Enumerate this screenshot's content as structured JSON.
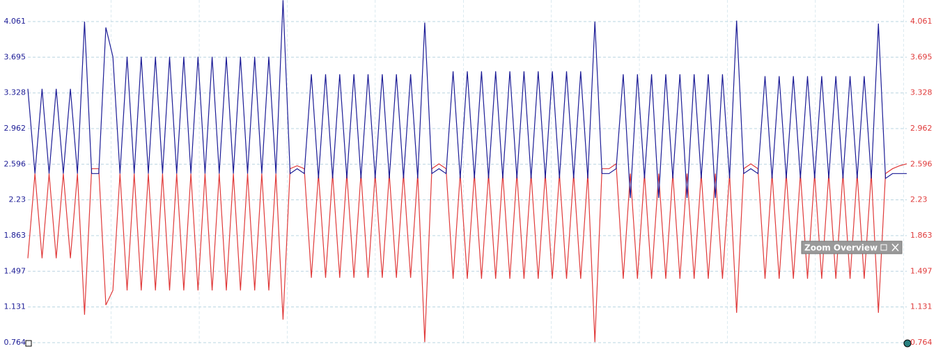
{
  "chart_data": {
    "type": "line",
    "ylim": [
      0.764,
      4.282
    ],
    "yticks": [
      0.764,
      1.131,
      1.497,
      1.863,
      2.23,
      2.596,
      2.962,
      3.328,
      3.695,
      4.061
    ],
    "y2lim": [
      0.764,
      4.282
    ],
    "y2ticks": [
      0.764,
      1.131,
      1.497,
      1.863,
      2.23,
      2.596,
      2.962,
      3.328,
      3.695,
      4.061
    ],
    "grid": true,
    "series": [
      {
        "color": "#1c1c96",
        "values": [
          3.37,
          2.5,
          3.37,
          2.5,
          3.37,
          2.5,
          3.37,
          2.5,
          4.06,
          2.5,
          2.5,
          4.0,
          3.7,
          2.5,
          3.7,
          2.5,
          3.7,
          2.5,
          3.7,
          2.5,
          3.7,
          2.5,
          3.7,
          2.5,
          3.7,
          2.5,
          3.7,
          2.5,
          3.7,
          2.5,
          3.7,
          2.5,
          3.7,
          2.5,
          3.7,
          2.5,
          4.28,
          2.5,
          2.55,
          2.5,
          3.52,
          2.45,
          3.52,
          2.45,
          3.52,
          2.45,
          3.52,
          2.45,
          3.52,
          2.45,
          3.52,
          2.45,
          3.52,
          2.45,
          3.52,
          2.45,
          4.05,
          2.5,
          2.55,
          2.5,
          3.55,
          2.45,
          3.55,
          2.45,
          3.55,
          2.45,
          3.55,
          2.45,
          3.55,
          2.45,
          3.55,
          2.45,
          3.55,
          2.45,
          3.55,
          2.45,
          3.55,
          2.45,
          3.55,
          2.45,
          4.06,
          2.5,
          2.5,
          2.55,
          3.52,
          2.25,
          3.52,
          2.45,
          3.52,
          2.25,
          3.52,
          2.45,
          3.52,
          2.25,
          3.52,
          2.45,
          3.52,
          2.25,
          3.52,
          2.45,
          4.07,
          2.5,
          2.55,
          2.5,
          3.5,
          2.45,
          3.5,
          2.45,
          3.5,
          2.45,
          3.5,
          2.45,
          3.5,
          2.45,
          3.5,
          2.45,
          3.5,
          2.45,
          3.5,
          2.45,
          4.04,
          2.45,
          2.5,
          2.5,
          2.5
        ]
      },
      {
        "color": "#e03a3a",
        "axis": "y2",
        "values": [
          1.63,
          2.5,
          1.63,
          2.5,
          1.63,
          2.5,
          1.63,
          2.5,
          1.05,
          2.55,
          2.55,
          1.15,
          1.3,
          2.5,
          1.3,
          2.5,
          1.3,
          2.5,
          1.3,
          2.5,
          1.3,
          2.5,
          1.3,
          2.5,
          1.3,
          2.5,
          1.3,
          2.5,
          1.3,
          2.5,
          1.3,
          2.5,
          1.3,
          2.5,
          1.3,
          2.5,
          1.0,
          2.55,
          2.58,
          2.55,
          1.43,
          2.5,
          1.43,
          2.5,
          1.43,
          2.5,
          1.43,
          2.5,
          1.43,
          2.5,
          1.43,
          2.5,
          1.43,
          2.5,
          1.43,
          2.5,
          0.77,
          2.55,
          2.6,
          2.55,
          1.42,
          2.5,
          1.42,
          2.5,
          1.42,
          2.5,
          1.42,
          2.5,
          1.42,
          2.5,
          1.42,
          2.5,
          1.42,
          2.5,
          1.42,
          2.5,
          1.42,
          2.5,
          1.42,
          2.5,
          0.77,
          2.55,
          2.55,
          2.6,
          1.42,
          2.5,
          1.42,
          2.5,
          1.42,
          2.5,
          1.42,
          2.5,
          1.42,
          2.5,
          1.42,
          2.5,
          1.42,
          2.5,
          1.42,
          2.5,
          1.07,
          2.55,
          2.6,
          2.55,
          1.42,
          2.5,
          1.42,
          2.5,
          1.42,
          2.5,
          1.42,
          2.5,
          1.42,
          2.5,
          1.42,
          2.5,
          1.42,
          2.5,
          1.42,
          2.5,
          1.07,
          2.5,
          2.55,
          2.58,
          2.6
        ]
      }
    ]
  },
  "overlay": {
    "title": "Zoom Overview"
  }
}
